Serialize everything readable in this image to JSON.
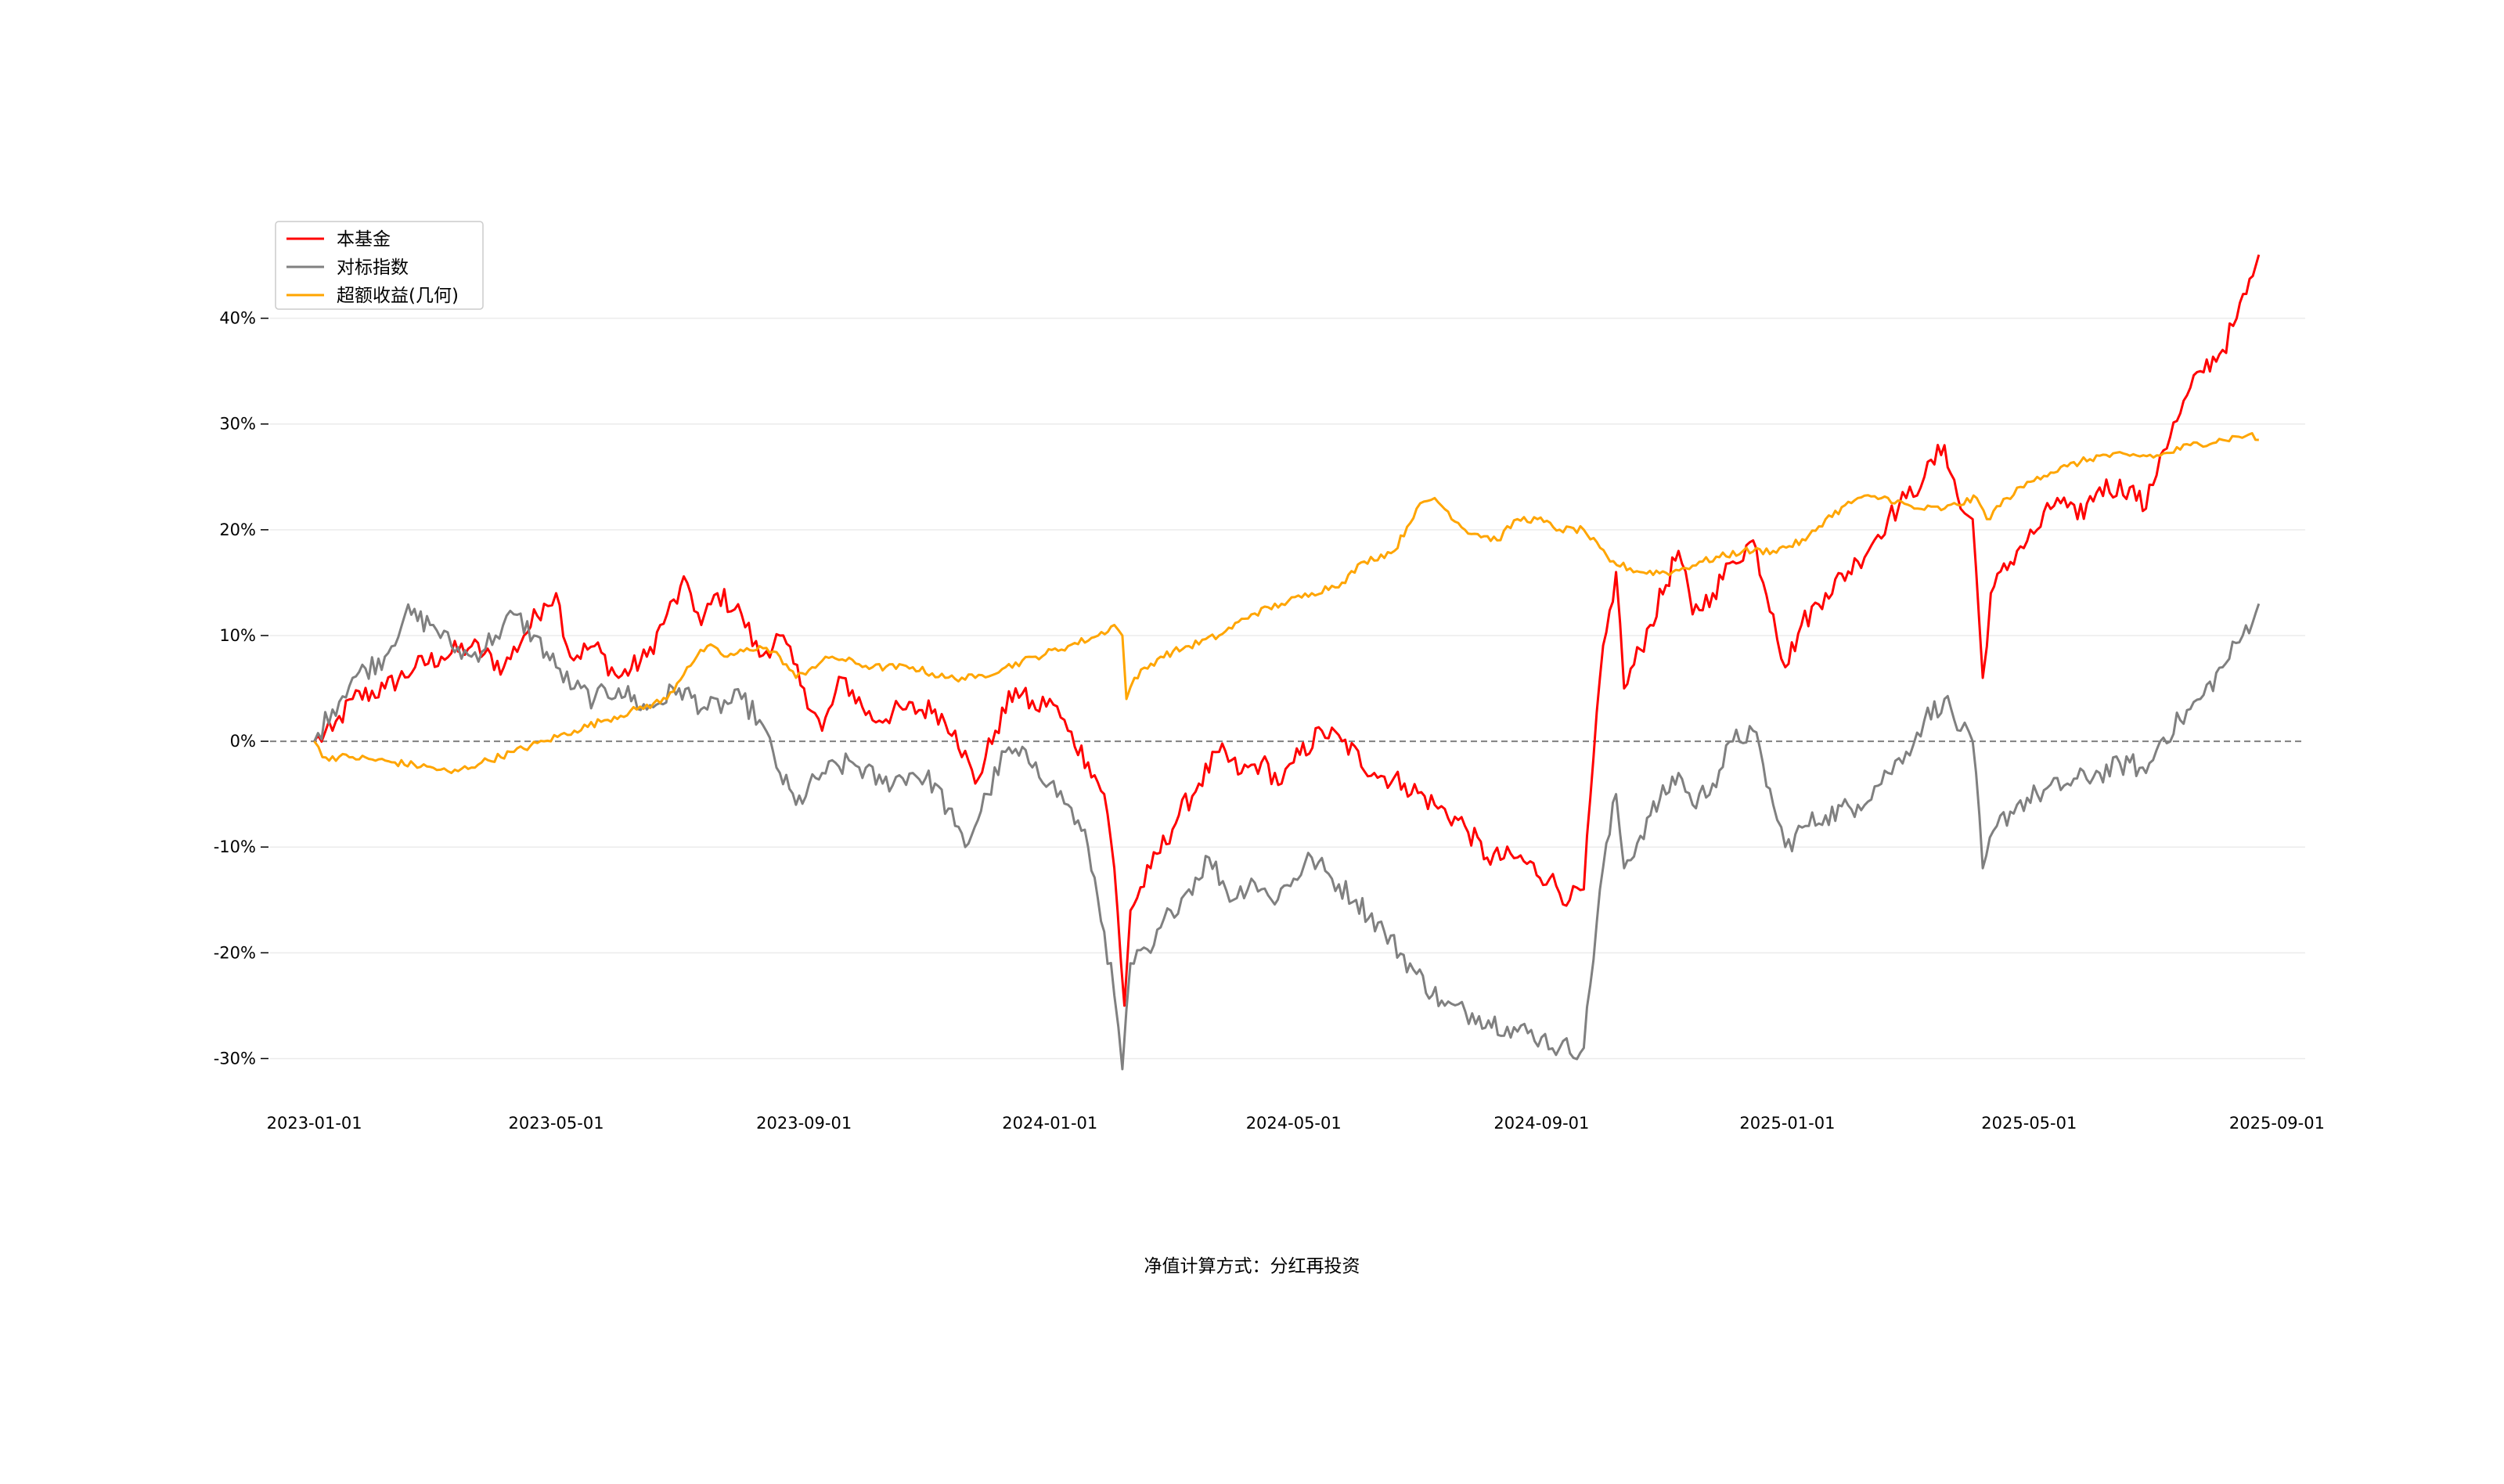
{
  "chart_data": {
    "type": "line",
    "x_axis": {
      "ticks": [
        "2023-01-01",
        "2023-05-01",
        "2023-09-01",
        "2024-01-01",
        "2024-05-01",
        "2024-09-01",
        "2025-01-01",
        "2025-05-01",
        "2025-09-01"
      ],
      "range": [
        "2022-12-10",
        "2025-09-15"
      ]
    },
    "y_axis": {
      "ticks": [
        -30,
        -20,
        -10,
        0,
        10,
        20,
        30,
        40
      ],
      "tick_labels": [
        "-30%",
        "-20%",
        "-10%",
        "0%",
        "10%",
        "20%",
        "30%",
        "40%"
      ],
      "range": [
        -35,
        49
      ],
      "unit": "%"
    },
    "grid": "horizontal",
    "zero_line": "dashed",
    "legend": {
      "position": "top-left",
      "entries": [
        "本基金",
        "对标指数",
        "超额收益(几何)"
      ]
    },
    "series": [
      {
        "name": "本基金",
        "color": "#ff0000",
        "points": [
          [
            "2023-01-01",
            0
          ],
          [
            "2023-01-10",
            1
          ],
          [
            "2023-01-20",
            4
          ],
          [
            "2023-02-05",
            5
          ],
          [
            "2023-02-20",
            7
          ],
          [
            "2023-03-05",
            8
          ],
          [
            "2023-03-20",
            9
          ],
          [
            "2023-04-05",
            7
          ],
          [
            "2023-04-15",
            10
          ],
          [
            "2023-04-25",
            13
          ],
          [
            "2023-05-01",
            14
          ],
          [
            "2023-05-08",
            8
          ],
          [
            "2023-05-20",
            9
          ],
          [
            "2023-06-01",
            6
          ],
          [
            "2023-06-15",
            8
          ],
          [
            "2023-06-25",
            12
          ],
          [
            "2023-07-05",
            15
          ],
          [
            "2023-07-12",
            11
          ],
          [
            "2023-07-20",
            14
          ],
          [
            "2023-08-01",
            12
          ],
          [
            "2023-08-10",
            8
          ],
          [
            "2023-08-20",
            10
          ],
          [
            "2023-09-01",
            5
          ],
          [
            "2023-09-10",
            1
          ],
          [
            "2023-09-20",
            6
          ],
          [
            "2023-10-05",
            2
          ],
          [
            "2023-10-20",
            3
          ],
          [
            "2023-11-05",
            3
          ],
          [
            "2023-11-15",
            1
          ],
          [
            "2023-11-25",
            -4
          ],
          [
            "2023-12-05",
            1
          ],
          [
            "2023-12-15",
            5
          ],
          [
            "2023-12-25",
            3
          ],
          [
            "2024-01-01",
            4
          ],
          [
            "2024-01-10",
            1
          ],
          [
            "2024-01-20",
            -2
          ],
          [
            "2024-01-28",
            -5
          ],
          [
            "2024-02-02",
            -12
          ],
          [
            "2024-02-07",
            -25
          ],
          [
            "2024-02-10",
            -16
          ],
          [
            "2024-02-20",
            -12
          ],
          [
            "2024-03-05",
            -7
          ],
          [
            "2024-03-15",
            -4
          ],
          [
            "2024-03-25",
            -1
          ],
          [
            "2024-04-05",
            -3
          ],
          [
            "2024-04-15",
            -2
          ],
          [
            "2024-04-25",
            -4
          ],
          [
            "2024-05-01",
            -2
          ],
          [
            "2024-05-15",
            1
          ],
          [
            "2024-05-25",
            0
          ],
          [
            "2024-06-10",
            -3
          ],
          [
            "2024-06-25",
            -4
          ],
          [
            "2024-07-10",
            -6
          ],
          [
            "2024-07-25",
            -8
          ],
          [
            "2024-08-05",
            -11
          ],
          [
            "2024-08-20",
            -11
          ],
          [
            "2024-09-05",
            -13
          ],
          [
            "2024-09-15",
            -15
          ],
          [
            "2024-09-22",
            -14
          ],
          [
            "2024-09-30",
            6
          ],
          [
            "2024-10-08",
            16
          ],
          [
            "2024-10-12",
            5
          ],
          [
            "2024-10-25",
            11
          ],
          [
            "2024-11-08",
            18
          ],
          [
            "2024-11-15",
            12
          ],
          [
            "2024-11-25",
            14
          ],
          [
            "2024-12-05",
            17
          ],
          [
            "2024-12-15",
            19
          ],
          [
            "2024-12-25",
            12
          ],
          [
            "2024-12-31",
            7
          ],
          [
            "2025-01-08",
            11
          ],
          [
            "2025-01-20",
            14
          ],
          [
            "2025-02-05",
            17
          ],
          [
            "2025-02-20",
            21
          ],
          [
            "2025-03-01",
            23
          ],
          [
            "2025-03-10",
            25
          ],
          [
            "2025-03-20",
            28
          ],
          [
            "2025-03-28",
            22
          ],
          [
            "2025-04-03",
            21
          ],
          [
            "2025-04-08",
            6
          ],
          [
            "2025-04-12",
            14
          ],
          [
            "2025-04-25",
            18
          ],
          [
            "2025-05-05",
            20
          ],
          [
            "2025-05-15",
            23
          ],
          [
            "2025-05-25",
            21
          ],
          [
            "2025-06-05",
            24
          ],
          [
            "2025-06-20",
            24
          ],
          [
            "2025-06-28",
            22
          ],
          [
            "2025-07-05",
            27
          ],
          [
            "2025-07-15",
            31
          ],
          [
            "2025-07-25",
            35
          ],
          [
            "2025-08-05",
            37
          ],
          [
            "2025-08-12",
            40
          ],
          [
            "2025-08-20",
            44
          ],
          [
            "2025-08-23",
            46
          ]
        ]
      },
      {
        "name": "对标指数",
        "color": "#808080",
        "points": [
          [
            "2023-01-01",
            0
          ],
          [
            "2023-01-10",
            3
          ],
          [
            "2023-01-20",
            6
          ],
          [
            "2023-02-05",
            8
          ],
          [
            "2023-02-15",
            12
          ],
          [
            "2023-03-01",
            11
          ],
          [
            "2023-03-10",
            9
          ],
          [
            "2023-03-20",
            8
          ],
          [
            "2023-04-01",
            10
          ],
          [
            "2023-04-10",
            12
          ],
          [
            "2023-04-20",
            10
          ],
          [
            "2023-05-01",
            7
          ],
          [
            "2023-05-10",
            5
          ],
          [
            "2023-05-20",
            4
          ],
          [
            "2023-06-01",
            5
          ],
          [
            "2023-06-15",
            3
          ],
          [
            "2023-07-01",
            5
          ],
          [
            "2023-07-15",
            3
          ],
          [
            "2023-08-01",
            4
          ],
          [
            "2023-08-10",
            2
          ],
          [
            "2023-08-20",
            -3
          ],
          [
            "2023-08-28",
            -6
          ],
          [
            "2023-09-10",
            -3
          ],
          [
            "2023-09-25",
            -2
          ],
          [
            "2023-10-10",
            -4
          ],
          [
            "2023-10-25",
            -3
          ],
          [
            "2023-11-05",
            -4
          ],
          [
            "2023-11-15",
            -8
          ],
          [
            "2023-11-20",
            -10
          ],
          [
            "2023-12-01",
            -5
          ],
          [
            "2023-12-10",
            -1
          ],
          [
            "2023-12-25",
            -2
          ],
          [
            "2024-01-01",
            -4
          ],
          [
            "2024-01-10",
            -6
          ],
          [
            "2024-01-20",
            -10
          ],
          [
            "2024-01-28",
            -18
          ],
          [
            "2024-02-02",
            -24
          ],
          [
            "2024-02-06",
            -31
          ],
          [
            "2024-02-10",
            -21
          ],
          [
            "2024-02-20",
            -20
          ],
          [
            "2024-03-01",
            -16
          ],
          [
            "2024-03-10",
            -14
          ],
          [
            "2024-03-20",
            -11
          ],
          [
            "2024-04-01",
            -15
          ],
          [
            "2024-04-10",
            -13
          ],
          [
            "2024-04-20",
            -15
          ],
          [
            "2024-05-01",
            -13
          ],
          [
            "2024-05-10",
            -11
          ],
          [
            "2024-05-20",
            -13
          ],
          [
            "2024-06-01",
            -15
          ],
          [
            "2024-06-15",
            -18
          ],
          [
            "2024-07-01",
            -22
          ],
          [
            "2024-07-15",
            -25
          ],
          [
            "2024-08-01",
            -26
          ],
          [
            "2024-08-15",
            -27
          ],
          [
            "2024-09-01",
            -28
          ],
          [
            "2024-09-10",
            -29
          ],
          [
            "2024-09-22",
            -29
          ],
          [
            "2024-09-30",
            -14
          ],
          [
            "2024-10-08",
            -5
          ],
          [
            "2024-10-12",
            -12
          ],
          [
            "2024-10-25",
            -7
          ],
          [
            "2024-11-08",
            -3
          ],
          [
            "2024-11-15",
            -6
          ],
          [
            "2024-11-25",
            -4
          ],
          [
            "2024-12-05",
            0
          ],
          [
            "2024-12-15",
            1
          ],
          [
            "2024-12-25",
            -6
          ],
          [
            "2024-12-31",
            -10
          ],
          [
            "2025-01-10",
            -8
          ],
          [
            "2025-01-20",
            -7
          ],
          [
            "2025-02-05",
            -6
          ],
          [
            "2025-02-20",
            -3
          ],
          [
            "2025-03-01",
            -1
          ],
          [
            "2025-03-10",
            2
          ],
          [
            "2025-03-20",
            4
          ],
          [
            "2025-03-28",
            1
          ],
          [
            "2025-04-03",
            0
          ],
          [
            "2025-04-08",
            -12
          ],
          [
            "2025-04-15",
            -8
          ],
          [
            "2025-04-25",
            -6
          ],
          [
            "2025-05-05",
            -5
          ],
          [
            "2025-05-20",
            -4
          ],
          [
            "2025-06-05",
            -3
          ],
          [
            "2025-06-20",
            -2
          ],
          [
            "2025-06-28",
            -3
          ],
          [
            "2025-07-05",
            0
          ],
          [
            "2025-07-15",
            2
          ],
          [
            "2025-07-25",
            4
          ],
          [
            "2025-08-05",
            7
          ],
          [
            "2025-08-15",
            10
          ],
          [
            "2025-08-23",
            13
          ]
        ]
      },
      {
        "name": "超额收益(几何)",
        "color": "#ffa500",
        "points": [
          [
            "2023-01-01",
            0
          ],
          [
            "2023-01-05",
            -1.5
          ],
          [
            "2023-01-20",
            -1.5
          ],
          [
            "2023-02-10",
            -2
          ],
          [
            "2023-03-01",
            -2.5
          ],
          [
            "2023-03-10",
            -3
          ],
          [
            "2023-03-25",
            -2
          ],
          [
            "2023-04-10",
            -1
          ],
          [
            "2023-04-25",
            0
          ],
          [
            "2023-05-10",
            1
          ],
          [
            "2023-05-25",
            2
          ],
          [
            "2023-06-10",
            3
          ],
          [
            "2023-06-25",
            4
          ],
          [
            "2023-07-05",
            7
          ],
          [
            "2023-07-15",
            9
          ],
          [
            "2023-07-25",
            8
          ],
          [
            "2023-08-10",
            9
          ],
          [
            "2023-08-20",
            8
          ],
          [
            "2023-08-28",
            6
          ],
          [
            "2023-09-05",
            7
          ],
          [
            "2023-09-15",
            8
          ],
          [
            "2023-10-05",
            7
          ],
          [
            "2023-10-25",
            7
          ],
          [
            "2023-11-10",
            6
          ],
          [
            "2023-11-25",
            6
          ],
          [
            "2023-12-10",
            7
          ],
          [
            "2023-12-25",
            8
          ],
          [
            "2024-01-10",
            9
          ],
          [
            "2024-01-25",
            10
          ],
          [
            "2024-02-02",
            11
          ],
          [
            "2024-02-06",
            10
          ],
          [
            "2024-02-08",
            4
          ],
          [
            "2024-02-12",
            6
          ],
          [
            "2024-02-25",
            8
          ],
          [
            "2024-03-10",
            9
          ],
          [
            "2024-03-25",
            10
          ],
          [
            "2024-04-10",
            12
          ],
          [
            "2024-04-25",
            13
          ],
          [
            "2024-05-10",
            14
          ],
          [
            "2024-05-25",
            15
          ],
          [
            "2024-06-05",
            17
          ],
          [
            "2024-06-20",
            18
          ],
          [
            "2024-07-01",
            22
          ],
          [
            "2024-07-10",
            23
          ],
          [
            "2024-07-25",
            20
          ],
          [
            "2024-08-10",
            19
          ],
          [
            "2024-08-20",
            21
          ],
          [
            "2024-08-30",
            21
          ],
          [
            "2024-09-10",
            20
          ],
          [
            "2024-09-22",
            20
          ],
          [
            "2024-10-05",
            17
          ],
          [
            "2024-10-20",
            16
          ],
          [
            "2024-11-05",
            16
          ],
          [
            "2024-11-20",
            17
          ],
          [
            "2024-12-10",
            18
          ],
          [
            "2024-12-25",
            18
          ],
          [
            "2025-01-10",
            19
          ],
          [
            "2025-01-20",
            21
          ],
          [
            "2025-02-05",
            23
          ],
          [
            "2025-02-20",
            23
          ],
          [
            "2025-03-05",
            22
          ],
          [
            "2025-03-20",
            22
          ],
          [
            "2025-04-05",
            23
          ],
          [
            "2025-04-10",
            21
          ],
          [
            "2025-04-20",
            23
          ],
          [
            "2025-05-05",
            25
          ],
          [
            "2025-05-20",
            26
          ],
          [
            "2025-06-05",
            27
          ],
          [
            "2025-06-20",
            27
          ],
          [
            "2025-07-05",
            27
          ],
          [
            "2025-07-20",
            28
          ],
          [
            "2025-08-05",
            28.5
          ],
          [
            "2025-08-18",
            29
          ],
          [
            "2025-08-23",
            28.5
          ]
        ]
      }
    ]
  },
  "footer": {
    "text": "净值计算方式：分红再投资"
  }
}
